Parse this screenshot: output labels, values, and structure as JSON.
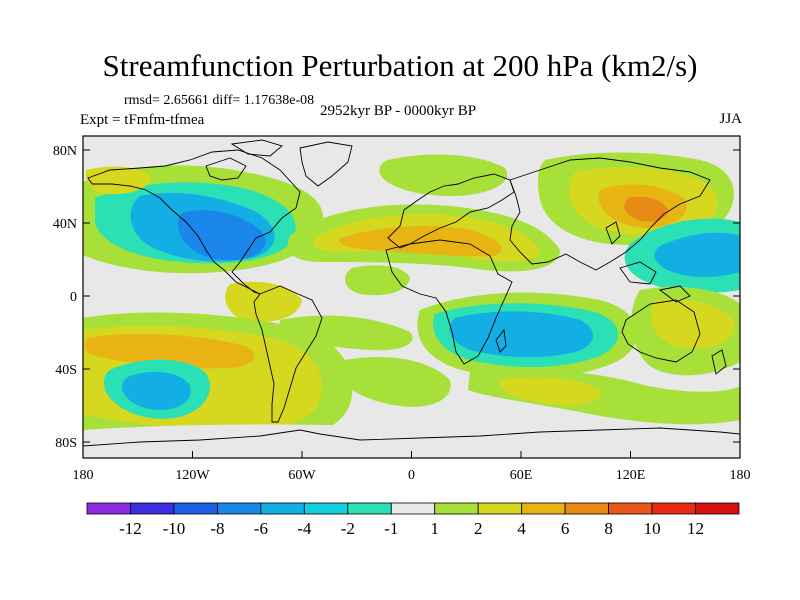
{
  "header": {
    "title": "Streamfunction Perturbation at 200 hPa (km2/s)",
    "stats": "rmsd= 2.65661  diff= 1.17638e-08",
    "experiment": "Expt = tFmfm-tfmea",
    "period": "2952kyr BP - 0000kyr BP",
    "season": "JJA"
  },
  "axes": {
    "lat_ticks": [
      "80N",
      "40N",
      "0",
      "40S",
      "80S"
    ],
    "lon_ticks": [
      "180",
      "120W",
      "60W",
      "0",
      "60E",
      "120E",
      "180"
    ]
  },
  "colorbar": {
    "labels": [
      "-12",
      "-10",
      "-8",
      "-6",
      "-4",
      "-2",
      "-1",
      "1",
      "2",
      "4",
      "6",
      "8",
      "10",
      "12"
    ],
    "colors": [
      "#8a2be2",
      "#3a2fe0",
      "#1e5fe6",
      "#1a86ea",
      "#12aee4",
      "#14cfe0",
      "#2ae0b4",
      "#e8e8e8",
      "#a8e03a",
      "#d6d820",
      "#e8b414",
      "#e88a14",
      "#e8581a",
      "#e82a14",
      "#d80f0f"
    ]
  },
  "palette": {
    "background": "#e8e8e8",
    "neg_strong": "#1e5fe6",
    "neg_mid": "#12aee4",
    "neg_weak": "#2ae0b4",
    "pos_weak": "#a8e03a",
    "pos_mid": "#d6d820",
    "pos_strong": "#e88a14",
    "coast": "#000000"
  }
}
